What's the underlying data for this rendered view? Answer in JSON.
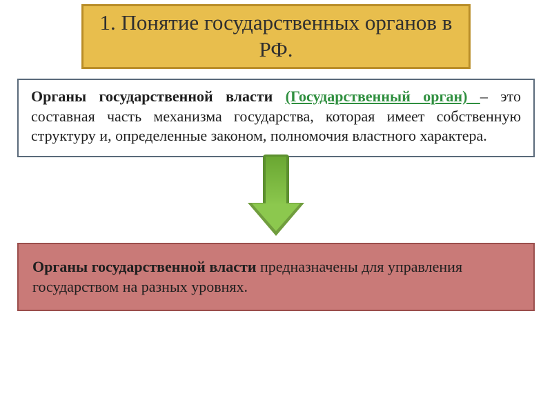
{
  "title": {
    "text": "1. Понятие государственных органов в РФ.",
    "bg": "#e8be4d",
    "border": "#b98d28",
    "color": "#2f2f2f",
    "fontsize": 31
  },
  "definition": {
    "lead_bold": "Органы государственной власти ",
    "link_text": "(Государственный орган) ",
    "rest": "– это составная часть механизма государства, которая имеет собственную структуру и, определенные законом, полномочия властного характера.",
    "border": "#5a6a7a",
    "bg": "#ffffff",
    "color": "#1f1f1f",
    "link_color": "#2f8f3f",
    "fontsize": 22
  },
  "arrow": {
    "outer_top": "#7ab63e",
    "outer_bottom": "#8fc94f",
    "border": "#5c8f2f",
    "head_border_top": "48px solid #8fc94f",
    "stem_gradient": "linear-gradient(#6aa732, #8cc84e)",
    "head_inner": "40px solid #8cc84e"
  },
  "bottom": {
    "lead_bold": "Органы государственной власти",
    "rest": " предназначены для управления государством на разных уровнях.",
    "bg": "#c97a78",
    "border": "#9a4e4c",
    "color": "#1f1f1f",
    "fontsize": 22
  }
}
